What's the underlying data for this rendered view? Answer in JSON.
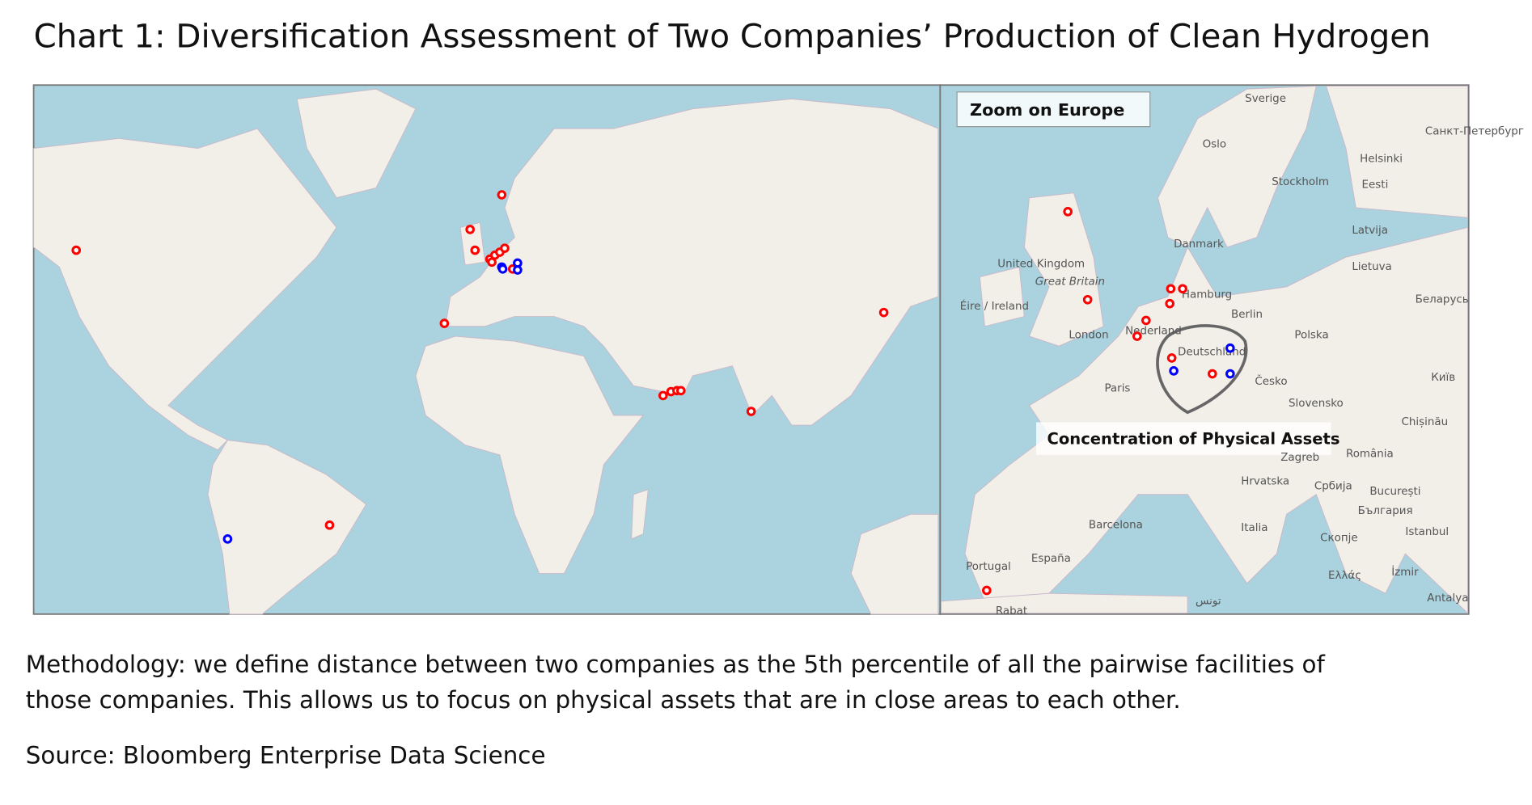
{
  "header": {
    "title": "Chart 1: Diversification Assessment of Two Companies’ Production of Clean Hydrogen"
  },
  "inset": {
    "title": "Zoom on Europe",
    "annotation": "Concentration of Physical Assets",
    "place_labels": [
      "Sverige",
      "Oslo",
      "Санкт-Петербург",
      "Helsinki",
      "Stockholm",
      "Eesti",
      "Latvija",
      "Danmark",
      "Lietuva",
      "United Kingdom",
      "Great Britain",
      "Éire / Ireland",
      "Hamburg",
      "Беларусь",
      "Berlin",
      "Nederland",
      "London",
      "Polska",
      "Deutschland",
      "Київ",
      "Paris",
      "Česko",
      "Slovensko",
      "Chișinău",
      "Zagreb",
      "România",
      "Hrvatska",
      "Србија",
      "București",
      "България",
      "Barcelona",
      "Italia",
      "Скопје",
      "Istanbul",
      "España",
      "Portugal",
      "Ελλάς",
      "İzmir",
      "Antalya",
      "Rabat",
      "تونس"
    ]
  },
  "footer": {
    "methodology": [
      "Methodology: we define distance between two companies as the 5th percentile of all the pairwise facilities of",
      "those companies. This allows us to focus on physical assets that are in close areas to each other."
    ],
    "source": "Source: Bloomberg Enterprise Data Science"
  }
}
